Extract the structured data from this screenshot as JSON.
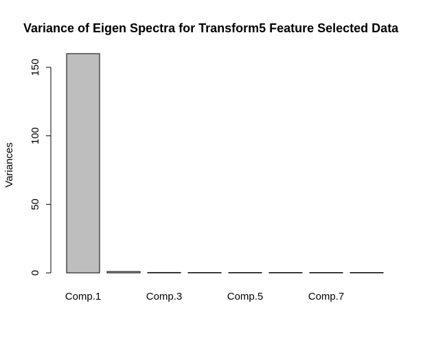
{
  "chart_data": {
    "type": "bar",
    "title": "Variance of Eigen Spectra for Transform5 Feature Selected Data",
    "xlabel": "",
    "ylabel": "Variances",
    "categories": [
      "Comp.1",
      "Comp.2",
      "Comp.3",
      "Comp.4",
      "Comp.5",
      "Comp.6",
      "Comp.7",
      "Comp.8"
    ],
    "x_tick_labels_shown": [
      "Comp.1",
      "",
      "Comp.3",
      "",
      "Comp.5",
      "",
      "Comp.7",
      ""
    ],
    "values": [
      160,
      1.0,
      0.3,
      0.15,
      0.1,
      0.05,
      0.03,
      0.02
    ],
    "ylim": [
      0,
      160
    ],
    "y_ticks": [
      0,
      50,
      100,
      150
    ],
    "grid": false,
    "legend": "none",
    "colors": {
      "bar_fill": "#bebebe",
      "bar_stroke": "#000000",
      "axis": "#000000"
    }
  }
}
